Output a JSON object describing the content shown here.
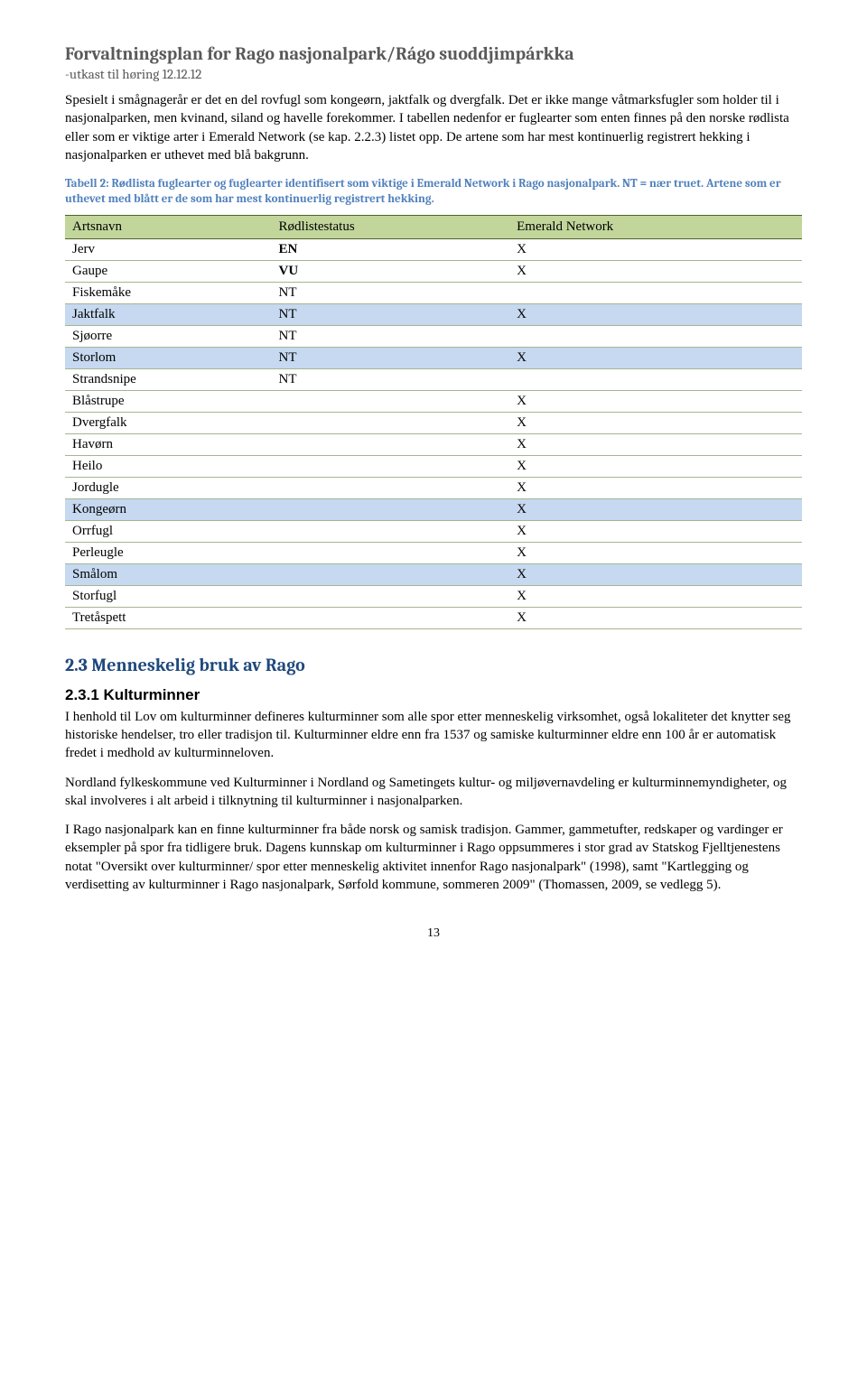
{
  "header": {
    "title": "Forvaltningsplan for Rago nasjonalpark/Rágo suoddjimpárkka",
    "subtitle": "-utkast til høring 12.12.12"
  },
  "intro_paragraph": "Spesielt i smågnagerår er det en del rovfugl som kongeørn, jaktfalk og dvergfalk. Det er ikke mange våtmarksfugler som holder til i nasjonalparken, men kvinand, siland og havelle forekommer. I tabellen nedenfor er fuglearter som enten finnes på den norske rødlista eller som er viktige arter i Emerald Network (se kap. ",
  "intro_link": "2.2.3",
  "intro_after_link": ") listet opp. De artene som har mest kontinuerlig registrert hekking i nasjonalparken er uthevet med blå bakgrunn.",
  "table_caption": "Tabell 2: Rødlista fuglearter og fuglearter identifisert som viktige i Emerald Network i Rago nasjonalpark. NT = nær truet. Artene som er uthevet med blått er de som har mest kontinuerlig registrert hekking.",
  "table": {
    "header_bg": "#c2d69b",
    "highlight_bg": "#c6d9f0",
    "columns": [
      "Artsnavn",
      "Rødlistestatus",
      "Emerald Network"
    ],
    "rows": [
      {
        "name": "Jerv",
        "status": "EN",
        "en": "X",
        "hl": false,
        "bold": true
      },
      {
        "name": "Gaupe",
        "status": "VU",
        "en": "X",
        "hl": false,
        "bold": true
      },
      {
        "name": "Fiskemåke",
        "status": "NT",
        "en": "",
        "hl": false,
        "bold": false
      },
      {
        "name": "Jaktfalk",
        "status": "NT",
        "en": "X",
        "hl": true,
        "bold": false
      },
      {
        "name": "Sjøorre",
        "status": "NT",
        "en": "",
        "hl": false,
        "bold": false
      },
      {
        "name": "Storlom",
        "status": "NT",
        "en": "X",
        "hl": true,
        "bold": false
      },
      {
        "name": "Strandsnipe",
        "status": "NT",
        "en": "",
        "hl": false,
        "bold": false
      },
      {
        "name": "Blåstrupe",
        "status": "",
        "en": "X",
        "hl": false,
        "bold": false
      },
      {
        "name": "Dvergfalk",
        "status": "",
        "en": "X",
        "hl": false,
        "bold": false
      },
      {
        "name": "Havørn",
        "status": "",
        "en": "X",
        "hl": false,
        "bold": false
      },
      {
        "name": "Heilo",
        "status": "",
        "en": "X",
        "hl": false,
        "bold": false
      },
      {
        "name": "Jordugle",
        "status": "",
        "en": "X",
        "hl": false,
        "bold": false
      },
      {
        "name": "Kongeørn",
        "status": "",
        "en": "X",
        "hl": true,
        "bold": false
      },
      {
        "name": "Orrfugl",
        "status": "",
        "en": "X",
        "hl": false,
        "bold": false
      },
      {
        "name": "Perleugle",
        "status": "",
        "en": "X",
        "hl": false,
        "bold": false
      },
      {
        "name": "Smålom",
        "status": "",
        "en": "X",
        "hl": true,
        "bold": false
      },
      {
        "name": "Storfugl",
        "status": "",
        "en": "X",
        "hl": false,
        "bold": false
      },
      {
        "name": "Tretåspett",
        "status": "",
        "en": "X",
        "hl": false,
        "bold": false
      }
    ]
  },
  "section": {
    "heading2": "2.3    Menneskelig bruk av Rago",
    "heading3": "2.3.1  Kulturminner",
    "p1": "I henhold til Lov om kulturminner defineres kulturminner som alle spor etter menneskelig virksomhet, også lokaliteter det knytter seg historiske hendelser, tro eller tradisjon til. Kulturminner eldre enn fra 1537 og samiske kulturminner eldre enn 100 år er automatisk fredet i medhold av kulturminneloven.",
    "p2": "Nordland fylkeskommune ved Kulturminner i Nordland og Sametingets kultur- og miljøvernavdeling er kulturminnemyndigheter, og skal involveres i alt arbeid i tilknytning til kulturminner i nasjonalparken.",
    "p3": "I Rago nasjonalpark kan en finne kulturminner fra både norsk og samisk tradisjon. Gammer, gammetufter, redskaper og vardinger er eksempler på spor fra tidligere bruk. Dagens kunnskap om kulturminner i Rago oppsummeres i stor grad av Statskog Fjelltjenestens notat \"Oversikt over kulturminner/ spor etter menneskelig aktivitet innenfor Rago nasjonalpark\" (1998), samt \"Kartlegging og verdisetting av kulturminner i Rago nasjonalpark, Sørfold kommune, sommeren 2009\" (Thomassen, 2009, se vedlegg 5)."
  },
  "page_number": "13"
}
